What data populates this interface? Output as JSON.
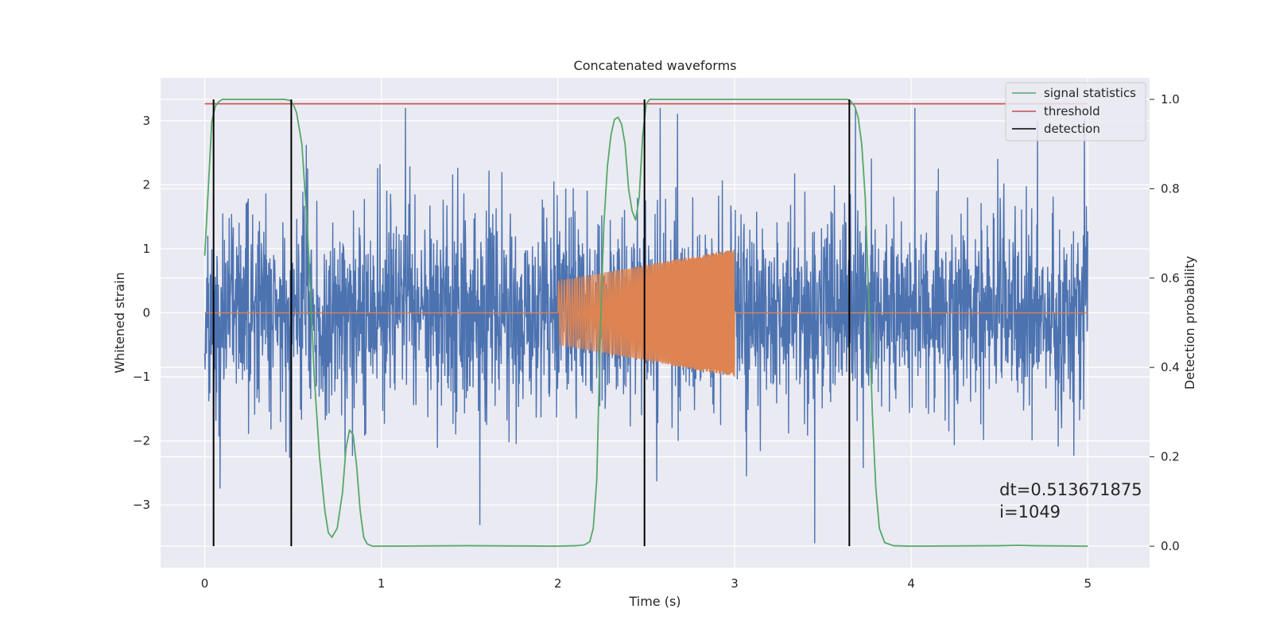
{
  "chart_data": {
    "type": "line",
    "title": "Concatenated waveforms",
    "xlabel": "Time (s)",
    "ylabel": "Whitened strain",
    "y2label": "Detection probability",
    "xlim": [
      -0.25,
      5.35
    ],
    "ylim": [
      -3.98,
      3.67
    ],
    "y2lim": [
      -0.048,
      1.048
    ],
    "xticks": [
      0,
      1,
      2,
      3,
      4,
      5
    ],
    "yticks": [
      -3,
      -2,
      -1,
      0,
      1,
      2,
      3
    ],
    "y2ticks": [
      0.0,
      0.2,
      0.4,
      0.6,
      0.8,
      1.0
    ],
    "y2tick_labels": [
      "0.0",
      "0.2",
      "0.4",
      "0.6",
      "0.8",
      "1.0"
    ],
    "grid": true,
    "legend_position": "top-right",
    "legend": [
      {
        "label": "signal statistics",
        "color": "#55a868"
      },
      {
        "label": "threshold",
        "color": "#c44e52"
      },
      {
        "label": "detection",
        "color": "#000000"
      }
    ],
    "series": [
      {
        "name": "",
        "axis": "left",
        "color": "#4c72b0",
        "kind": "whitened noise",
        "x_range": [
          0,
          5
        ],
        "approx_std": 0.75,
        "approx_min": -3.6,
        "approx_max": 3.2
      },
      {
        "name": "",
        "axis": "left",
        "color": "#dd8452",
        "kind": "injected chirp",
        "x_range": [
          0,
          5
        ],
        "chirp_start": 2.0,
        "chirp_end": 3.0,
        "amplitude_start": 0.5,
        "amplitude_end": 1.0
      },
      {
        "name": "signal statistics",
        "axis": "right",
        "color": "#55a868",
        "x": [
          0,
          0.02,
          0.04,
          0.06,
          0.08,
          0.1,
          0.15,
          0.2,
          0.3,
          0.4,
          0.45,
          0.48,
          0.5,
          0.52,
          0.55,
          0.58,
          0.6,
          0.62,
          0.65,
          0.68,
          0.7,
          0.72,
          0.75,
          0.78,
          0.8,
          0.82,
          0.84,
          0.86,
          0.88,
          0.9,
          0.92,
          0.95,
          1.0,
          1.5,
          2.0,
          2.1,
          2.15,
          2.18,
          2.2,
          2.22,
          2.24,
          2.26,
          2.28,
          2.3,
          2.32,
          2.34,
          2.36,
          2.38,
          2.4,
          2.42,
          2.44,
          2.46,
          2.48,
          2.5,
          2.52,
          2.55,
          2.6,
          3.0,
          3.5,
          3.6,
          3.64,
          3.66,
          3.68,
          3.7,
          3.72,
          3.74,
          3.76,
          3.78,
          3.8,
          3.82,
          3.85,
          3.9,
          4.0,
          4.5,
          4.6,
          4.7,
          5.0
        ],
        "values": [
          0.65,
          0.8,
          0.95,
          0.985,
          0.995,
          1.0,
          1.0,
          1.0,
          1.0,
          1.0,
          1.0,
          0.998,
          0.99,
          0.97,
          0.9,
          0.72,
          0.56,
          0.38,
          0.2,
          0.08,
          0.03,
          0.02,
          0.04,
          0.12,
          0.22,
          0.26,
          0.25,
          0.18,
          0.08,
          0.02,
          0.005,
          0.0,
          0.0,
          0.001,
          0.0,
          0.001,
          0.003,
          0.01,
          0.04,
          0.15,
          0.48,
          0.72,
          0.85,
          0.92,
          0.955,
          0.96,
          0.945,
          0.9,
          0.8,
          0.75,
          0.73,
          0.78,
          0.92,
          0.99,
          1.0,
          1.0,
          1.0,
          1.0,
          1.0,
          1.0,
          1.0,
          0.995,
          0.985,
          0.96,
          0.9,
          0.78,
          0.55,
          0.3,
          0.13,
          0.04,
          0.008,
          0.001,
          0.0,
          0.001,
          0.002,
          0.001,
          0.0
        ]
      },
      {
        "name": "threshold",
        "axis": "right",
        "color": "#c44e52",
        "x": [
          0,
          5
        ],
        "values": [
          0.99,
          0.99
        ]
      }
    ],
    "detections": {
      "color": "#000000",
      "x": [
        0.05,
        0.49,
        2.49,
        3.65
      ],
      "y2_range": [
        0.0,
        1.0
      ]
    },
    "annotations": [
      {
        "text": "dt=0.513671875",
        "x": 4.5,
        "y": -2.85
      },
      {
        "text": " i=1049",
        "x": 4.5,
        "y": -3.2
      }
    ]
  }
}
